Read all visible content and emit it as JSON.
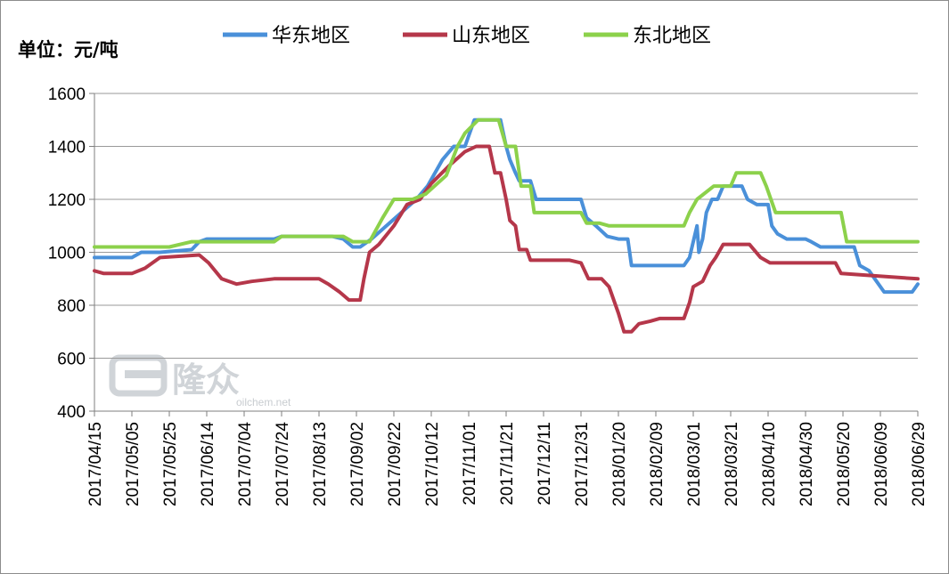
{
  "chart_data": {
    "type": "line",
    "unit_label": "单位：元/吨",
    "ylim": [
      400,
      1600
    ],
    "y_ticks": [
      "1600",
      "1400",
      "1200",
      "1000",
      "800",
      "600",
      "400"
    ],
    "x_ticks": [
      "2017/04/15",
      "2017/05/05",
      "2017/05/25",
      "2017/06/14",
      "2017/07/04",
      "2017/07/24",
      "2017/08/13",
      "2017/09/02",
      "2017/09/22",
      "2017/10/12",
      "2017/11/01",
      "2017/11/21",
      "2017/12/11",
      "2017/12/31",
      "2018/01/20",
      "2018/02/09",
      "2018/03/01",
      "2018/03/21",
      "2018/04/10",
      "2018/04/30",
      "2018/05/20",
      "2018/06/09",
      "2018/06/29"
    ],
    "x_range": [
      "2017/04/15",
      "2018/06/29"
    ],
    "grid": "horizontal",
    "legend_position": "top",
    "series": [
      {
        "name": "华东地区",
        "color": "#4a90d9",
        "points": [
          [
            "2017/04/15",
            980
          ],
          [
            "2017/05/05",
            980
          ],
          [
            "2017/05/10",
            1000
          ],
          [
            "2017/05/20",
            1000
          ],
          [
            "2017/06/06",
            1010
          ],
          [
            "2017/06/10",
            1040
          ],
          [
            "2017/06/14",
            1050
          ],
          [
            "2017/07/20",
            1050
          ],
          [
            "2017/07/24",
            1060
          ],
          [
            "2017/08/20",
            1060
          ],
          [
            "2017/08/26",
            1050
          ],
          [
            "2017/08/31",
            1020
          ],
          [
            "2017/09/04",
            1020
          ],
          [
            "2017/09/10",
            1050
          ],
          [
            "2017/09/18",
            1100
          ],
          [
            "2017/09/26",
            1150
          ],
          [
            "2017/10/04",
            1200
          ],
          [
            "2017/10/10",
            1250
          ],
          [
            "2017/10/18",
            1350
          ],
          [
            "2017/10/24",
            1400
          ],
          [
            "2017/10/30",
            1400
          ],
          [
            "2017/11/04",
            1500
          ],
          [
            "2017/11/18",
            1500
          ],
          [
            "2017/11/21",
            1400
          ],
          [
            "2017/11/23",
            1350
          ],
          [
            "2017/11/26",
            1300
          ],
          [
            "2017/11/28",
            1270
          ],
          [
            "2017/12/04",
            1270
          ],
          [
            "2017/12/07",
            1200
          ],
          [
            "2017/12/31",
            1200
          ],
          [
            "2018/01/03",
            1130
          ],
          [
            "2018/01/08",
            1100
          ],
          [
            "2018/01/14",
            1060
          ],
          [
            "2018/01/20",
            1050
          ],
          [
            "2018/01/25",
            1050
          ],
          [
            "2018/01/27",
            950
          ],
          [
            "2018/02/24",
            950
          ],
          [
            "2018/02/27",
            980
          ],
          [
            "2018/03/03",
            1100
          ],
          [
            "2018/03/04",
            1000
          ],
          [
            "2018/03/06",
            1050
          ],
          [
            "2018/03/08",
            1150
          ],
          [
            "2018/03/11",
            1200
          ],
          [
            "2018/03/14",
            1200
          ],
          [
            "2018/03/17",
            1250
          ],
          [
            "2018/03/27",
            1250
          ],
          [
            "2018/03/30",
            1200
          ],
          [
            "2018/04/04",
            1180
          ],
          [
            "2018/04/10",
            1180
          ],
          [
            "2018/04/12",
            1100
          ],
          [
            "2018/04/15",
            1070
          ],
          [
            "2018/04/20",
            1050
          ],
          [
            "2018/04/30",
            1050
          ],
          [
            "2018/05/03",
            1040
          ],
          [
            "2018/05/08",
            1020
          ],
          [
            "2018/05/26",
            1020
          ],
          [
            "2018/05/29",
            950
          ],
          [
            "2018/06/03",
            930
          ],
          [
            "2018/06/06",
            900
          ],
          [
            "2018/06/11",
            850
          ],
          [
            "2018/06/26",
            850
          ],
          [
            "2018/06/29",
            880
          ]
        ]
      },
      {
        "name": "山东地区",
        "color": "#b5374a",
        "points": [
          [
            "2017/04/15",
            930
          ],
          [
            "2017/04/20",
            920
          ],
          [
            "2017/05/05",
            920
          ],
          [
            "2017/05/12",
            940
          ],
          [
            "2017/05/20",
            980
          ],
          [
            "2017/06/10",
            990
          ],
          [
            "2017/06/15",
            960
          ],
          [
            "2017/06/22",
            900
          ],
          [
            "2017/06/30",
            880
          ],
          [
            "2017/07/08",
            890
          ],
          [
            "2017/07/20",
            900
          ],
          [
            "2017/08/13",
            900
          ],
          [
            "2017/08/18",
            880
          ],
          [
            "2017/08/24",
            850
          ],
          [
            "2017/08/29",
            820
          ],
          [
            "2017/09/04",
            820
          ],
          [
            "2017/09/06",
            900
          ],
          [
            "2017/09/09",
            1000
          ],
          [
            "2017/09/14",
            1030
          ],
          [
            "2017/09/22",
            1100
          ],
          [
            "2017/09/29",
            1180
          ],
          [
            "2017/10/06",
            1200
          ],
          [
            "2017/10/12",
            1260
          ],
          [
            "2017/10/22",
            1330
          ],
          [
            "2017/10/30",
            1380
          ],
          [
            "2017/11/05",
            1400
          ],
          [
            "2017/11/12",
            1400
          ],
          [
            "2017/11/15",
            1300
          ],
          [
            "2017/11/18",
            1300
          ],
          [
            "2017/11/21",
            1200
          ],
          [
            "2017/11/23",
            1120
          ],
          [
            "2017/11/26",
            1100
          ],
          [
            "2017/11/28",
            1010
          ],
          [
            "2017/12/02",
            1010
          ],
          [
            "2017/12/04",
            970
          ],
          [
            "2017/12/25",
            970
          ],
          [
            "2017/12/31",
            960
          ],
          [
            "2018/01/04",
            900
          ],
          [
            "2018/01/11",
            900
          ],
          [
            "2018/01/15",
            870
          ],
          [
            "2018/01/20",
            770
          ],
          [
            "2018/01/23",
            700
          ],
          [
            "2018/01/27",
            700
          ],
          [
            "2018/01/31",
            730
          ],
          [
            "2018/02/06",
            740
          ],
          [
            "2018/02/11",
            750
          ],
          [
            "2018/02/24",
            750
          ],
          [
            "2018/02/27",
            810
          ],
          [
            "2018/03/01",
            870
          ],
          [
            "2018/03/06",
            890
          ],
          [
            "2018/03/10",
            950
          ],
          [
            "2018/03/13",
            980
          ],
          [
            "2018/03/17",
            1030
          ],
          [
            "2018/03/31",
            1030
          ],
          [
            "2018/04/06",
            980
          ],
          [
            "2018/04/11",
            960
          ],
          [
            "2018/04/30",
            960
          ],
          [
            "2018/05/16",
            960
          ],
          [
            "2018/05/19",
            920
          ],
          [
            "2018/06/29",
            900
          ]
        ]
      },
      {
        "name": "东北地区",
        "color": "#8cd14b",
        "points": [
          [
            "2017/04/15",
            1020
          ],
          [
            "2017/05/25",
            1020
          ],
          [
            "2017/06/06",
            1040
          ],
          [
            "2017/07/20",
            1040
          ],
          [
            "2017/07/24",
            1060
          ],
          [
            "2017/08/26",
            1060
          ],
          [
            "2017/08/31",
            1040
          ],
          [
            "2017/09/09",
            1040
          ],
          [
            "2017/09/16",
            1130
          ],
          [
            "2017/09/22",
            1200
          ],
          [
            "2017/10/02",
            1200
          ],
          [
            "2017/10/09",
            1220
          ],
          [
            "2017/10/20",
            1290
          ],
          [
            "2017/10/26",
            1400
          ],
          [
            "2017/10/30",
            1450
          ],
          [
            "2017/11/06",
            1500
          ],
          [
            "2017/11/17",
            1500
          ],
          [
            "2017/11/21",
            1400
          ],
          [
            "2017/11/26",
            1400
          ],
          [
            "2017/11/29",
            1250
          ],
          [
            "2017/12/04",
            1250
          ],
          [
            "2017/12/06",
            1150
          ],
          [
            "2017/12/31",
            1150
          ],
          [
            "2018/01/03",
            1110
          ],
          [
            "2018/01/10",
            1110
          ],
          [
            "2018/01/15",
            1100
          ],
          [
            "2018/02/24",
            1100
          ],
          [
            "2018/02/27",
            1150
          ],
          [
            "2018/03/03",
            1200
          ],
          [
            "2018/03/12",
            1250
          ],
          [
            "2018/03/21",
            1250
          ],
          [
            "2018/03/24",
            1300
          ],
          [
            "2018/04/06",
            1300
          ],
          [
            "2018/04/09",
            1250
          ],
          [
            "2018/04/14",
            1150
          ],
          [
            "2018/05/19",
            1150
          ],
          [
            "2018/05/22",
            1040
          ],
          [
            "2018/06/29",
            1040
          ]
        ]
      }
    ]
  },
  "watermark": {
    "text": "隆众",
    "subtext": "oilchem.net"
  }
}
